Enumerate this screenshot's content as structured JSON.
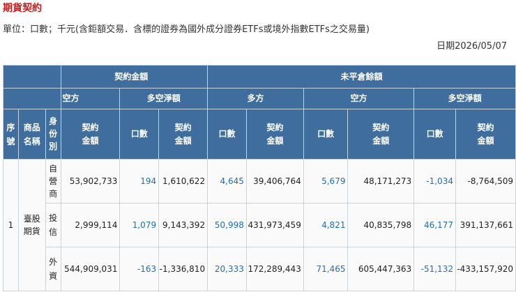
{
  "title": "期貨契約",
  "unit_note": "單位：口數；千元(含鉅額交易．含標的證券為國外成分證券ETFs或境外指數ETFs之交易量)",
  "date": "日期2026/05/07",
  "table": {
    "headers": {
      "group_trade": "契約金額",
      "group_oi": "未平倉餘額",
      "short": "空方",
      "net": "多空淨額",
      "long": "多方",
      "seq": "序號",
      "product": "商品名稱",
      "identity": "身份別",
      "qty": "口數",
      "amount": "契約金額"
    },
    "seq": "1",
    "product": "臺股期貨",
    "rows": [
      {
        "identity": "自營商",
        "short_amount": "53,902,733",
        "net_qty": "194",
        "net_amount": "1,610,622",
        "oi_long_qty": "4,645",
        "oi_long_amount": "39,406,764",
        "oi_short_qty": "5,679",
        "oi_short_amount": "48,171,273",
        "oi_net_qty": "-1,034",
        "oi_net_amount": "-8,764,509"
      },
      {
        "identity": "投信",
        "short_amount": "2,999,114",
        "net_qty": "1,079",
        "net_amount": "9,143,392",
        "oi_long_qty": "50,998",
        "oi_long_amount": "431,973,459",
        "oi_short_qty": "4,821",
        "oi_short_amount": "40,835,798",
        "oi_net_qty": "46,177",
        "oi_net_amount": "391,137,661"
      },
      {
        "identity": "外資",
        "short_amount": "544,909,031",
        "net_qty": "-163",
        "net_amount": "-1,336,810",
        "oi_long_qty": "20,333",
        "oi_long_amount": "172,289,443",
        "oi_short_qty": "71,465",
        "oi_short_amount": "605,447,363",
        "oi_net_qty": "-51,132",
        "oi_net_amount": "-433,157,920"
      }
    ]
  }
}
